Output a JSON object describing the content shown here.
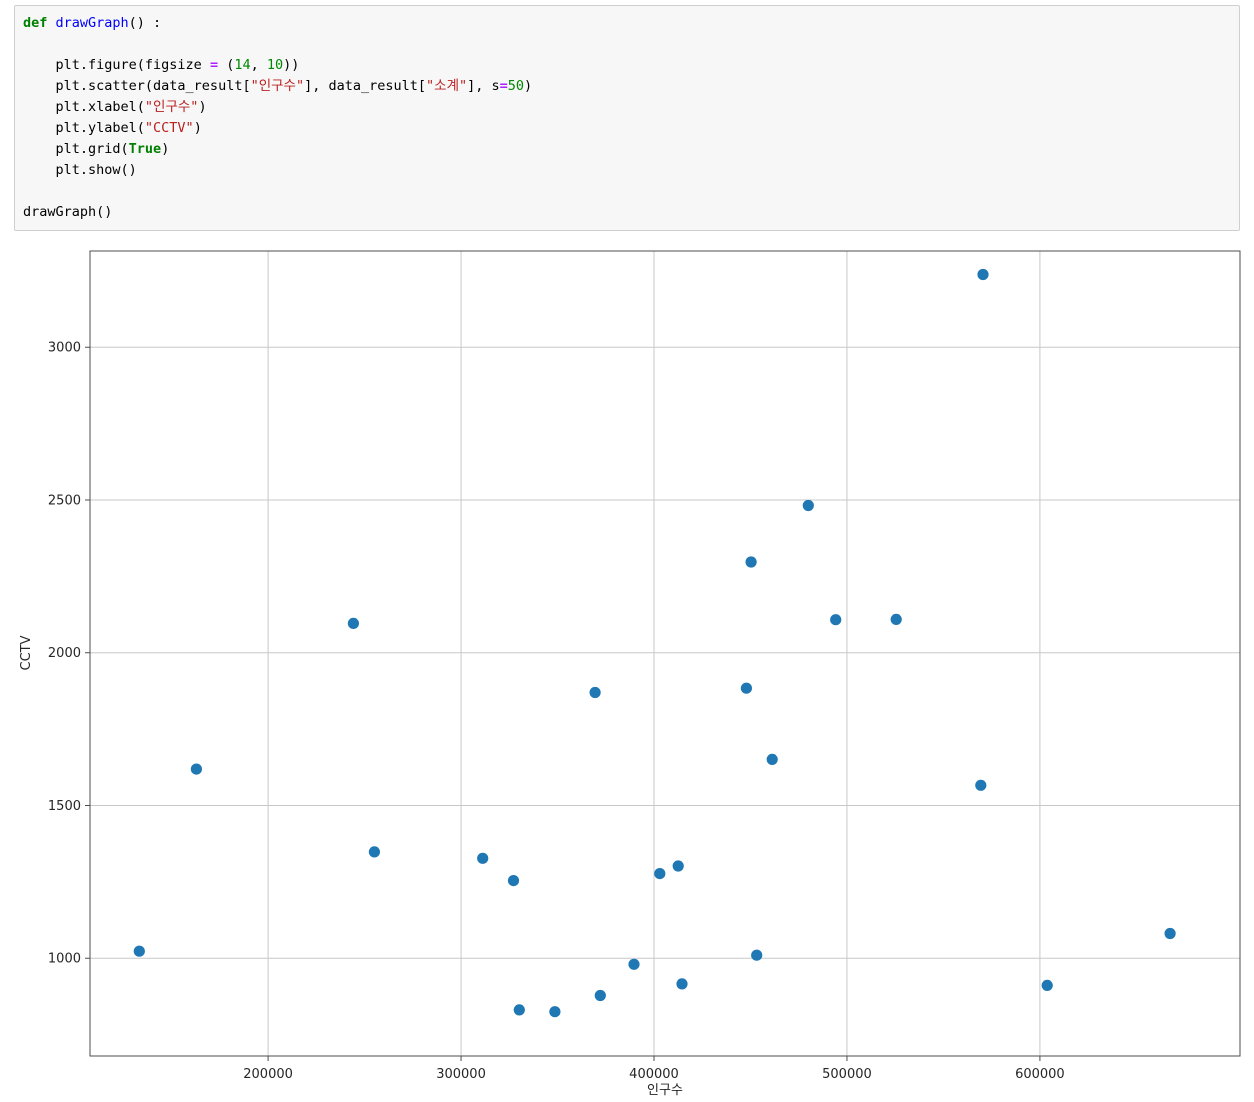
{
  "code_cell": {
    "lines": [
      [
        {
          "t": "def ",
          "c": "kw"
        },
        {
          "t": "drawGraph",
          "c": "fn"
        },
        {
          "t": "() :",
          "c": ""
        }
      ],
      [],
      [
        {
          "t": "    plt.figure(figsize ",
          "c": ""
        },
        {
          "t": "=",
          "c": "op"
        },
        {
          "t": " (",
          "c": ""
        },
        {
          "t": "14",
          "c": "num"
        },
        {
          "t": ", ",
          "c": ""
        },
        {
          "t": "10",
          "c": "num"
        },
        {
          "t": "))",
          "c": ""
        }
      ],
      [
        {
          "t": "    plt.scatter(data_result[",
          "c": ""
        },
        {
          "t": "\"인구수\"",
          "c": "str"
        },
        {
          "t": "], data_result[",
          "c": ""
        },
        {
          "t": "\"소계\"",
          "c": "str"
        },
        {
          "t": "], s",
          "c": ""
        },
        {
          "t": "=",
          "c": "op"
        },
        {
          "t": "50",
          "c": "num"
        },
        {
          "t": ")",
          "c": ""
        }
      ],
      [
        {
          "t": "    plt.xlabel(",
          "c": ""
        },
        {
          "t": "\"인구수\"",
          "c": "str"
        },
        {
          "t": ")",
          "c": ""
        }
      ],
      [
        {
          "t": "    plt.ylabel(",
          "c": ""
        },
        {
          "t": "\"CCTV\"",
          "c": "str"
        },
        {
          "t": ")",
          "c": ""
        }
      ],
      [
        {
          "t": "    plt.grid(",
          "c": ""
        },
        {
          "t": "True",
          "c": "kw"
        },
        {
          "t": ")",
          "c": ""
        }
      ],
      [
        {
          "t": "    plt.show()",
          "c": ""
        }
      ],
      [],
      [
        {
          "t": "drawGraph()",
          "c": ""
        }
      ]
    ]
  },
  "chart_data": {
    "type": "scatter",
    "title": "",
    "xlabel": "인구수",
    "ylabel": "CCTV",
    "grid": true,
    "legend": "none",
    "marker_color": "#1f77b4",
    "marker_size": 50,
    "xlim": [
      107700,
      703700
    ],
    "ylim": [
      680,
      3315
    ],
    "x_ticks": [
      200000,
      300000,
      400000,
      500000,
      600000
    ],
    "y_ticks": [
      1000,
      1500,
      2000,
      2500,
      3000
    ],
    "points": [
      [
        133240,
        1023
      ],
      [
        162820,
        1619
      ],
      [
        244203,
        2096
      ],
      [
        255082,
        1348
      ],
      [
        311244,
        1327
      ],
      [
        327163,
        1254
      ],
      [
        330192,
        831
      ],
      [
        348646,
        825
      ],
      [
        369496,
        1870
      ],
      [
        372164,
        878
      ],
      [
        389649,
        980
      ],
      [
        402985,
        1277
      ],
      [
        412520,
        1302
      ],
      [
        414503,
        916
      ],
      [
        447874,
        1884
      ],
      [
        450310,
        2297
      ],
      [
        453233,
        1010
      ],
      [
        461260,
        1651
      ],
      [
        479978,
        2482
      ],
      [
        494190,
        2108
      ],
      [
        525515,
        2109
      ],
      [
        569384,
        1566
      ],
      [
        570500,
        3238
      ],
      [
        603772,
        911
      ],
      [
        667483,
        1081
      ]
    ]
  }
}
